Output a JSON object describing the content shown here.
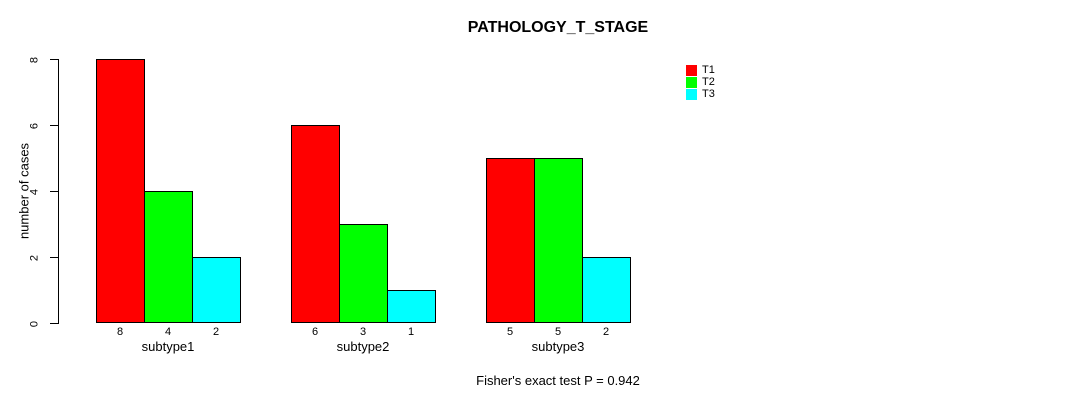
{
  "chart_data": {
    "type": "bar",
    "title": "PATHOLOGY_T_STAGE",
    "ylabel": "number of cases",
    "xlabel": "",
    "ylim": [
      0,
      8
    ],
    "yticks": [
      0,
      2,
      4,
      6,
      8
    ],
    "categories": [
      "subtype1",
      "subtype2",
      "subtype3"
    ],
    "series": [
      {
        "name": "T1",
        "color": "#ff0000",
        "values": [
          8,
          6,
          5
        ]
      },
      {
        "name": "T2",
        "color": "#00ff00",
        "values": [
          4,
          3,
          5
        ]
      },
      {
        "name": "T3",
        "color": "#00ffff",
        "values": [
          2,
          1,
          2
        ]
      }
    ],
    "value_labels": [
      [
        "8",
        "4",
        "2"
      ],
      [
        "6",
        "3",
        "1"
      ],
      [
        "5",
        "5",
        "2"
      ]
    ],
    "annotation": "Fisher's exact test P = 0.942",
    "legend": {
      "position": "top-right",
      "entries": [
        "T1",
        "T2",
        "T3"
      ]
    },
    "grid": false,
    "background": "#ffffff",
    "bar_border_color": "#000000",
    "text_color": "#000000"
  }
}
